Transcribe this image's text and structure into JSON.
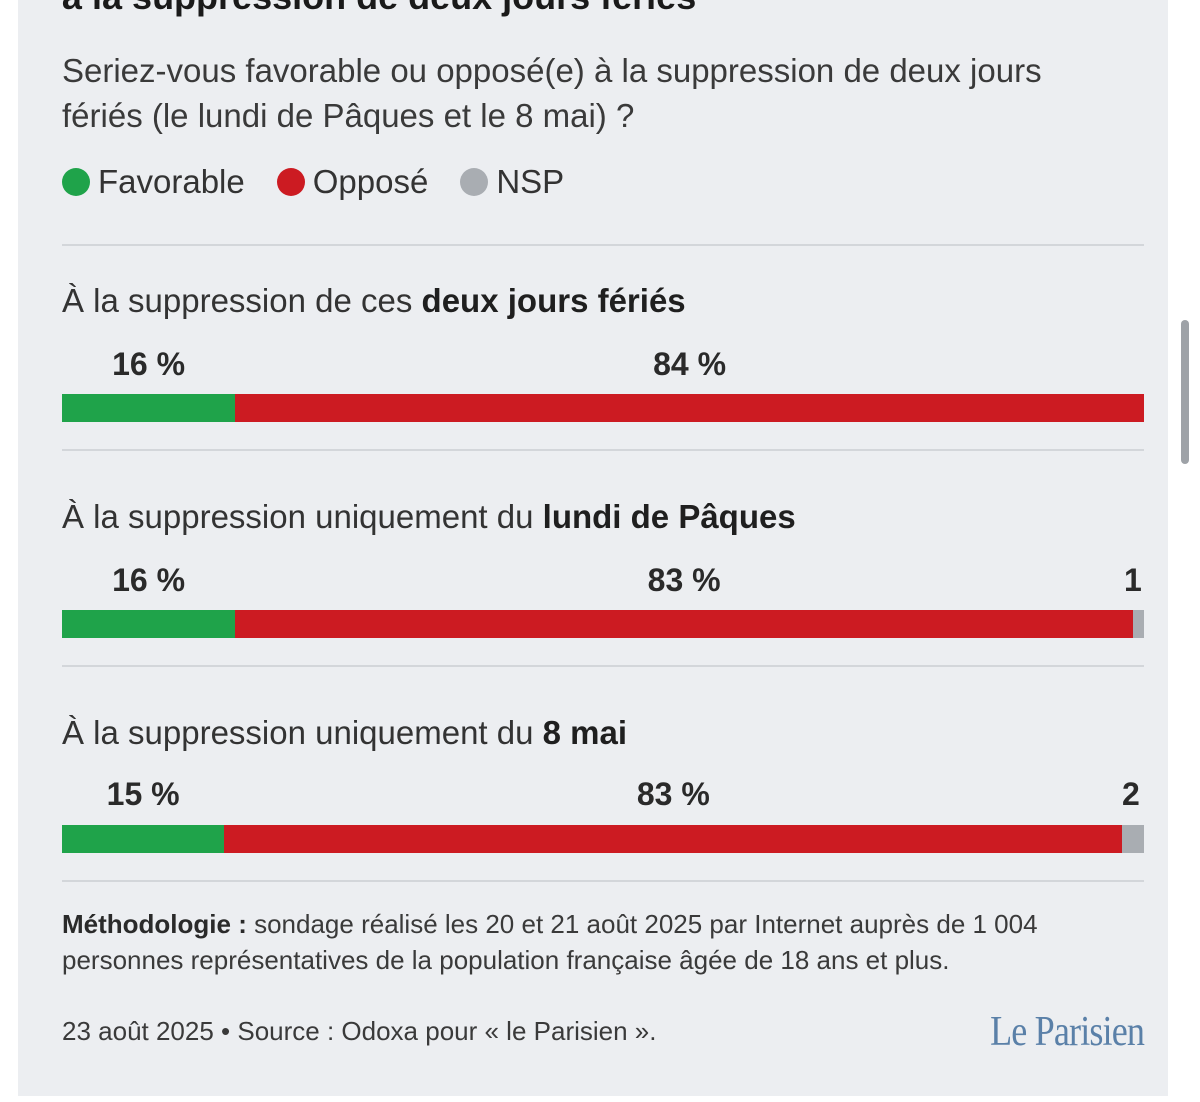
{
  "header": {
    "title_partial": "à la suppression de deux jours fériés",
    "question": "Seriez-vous favorable ou opposé(e) à la suppression de deux jours fériés (le lundi de Pâques et le 8 mai) ?"
  },
  "legend": [
    {
      "label": "Favorable",
      "color": "#1fa34a"
    },
    {
      "label": "Opposé",
      "color": "#cc1b22"
    },
    {
      "label": "NSP",
      "color": "#a9adb2"
    }
  ],
  "chart_data": {
    "type": "bar",
    "orientation": "horizontal-stacked-100",
    "categories": [
      "À la suppression de ces deux jours fériés",
      "À la suppression uniquement du lundi de Pâques",
      "À la suppression uniquement du 8 mai"
    ],
    "series": [
      {
        "name": "Favorable",
        "values": [
          16,
          16,
          15
        ]
      },
      {
        "name": "Opposé",
        "values": [
          84,
          83,
          83
        ]
      },
      {
        "name": "NSP",
        "values": [
          0,
          1,
          2
        ]
      }
    ],
    "rows": [
      {
        "prefix": "À la suppression de ces ",
        "bold": "deux jours fériés",
        "fav": 16,
        "opp": 84,
        "nsp": 0,
        "fav_label": "16 %",
        "opp_label": "84 %",
        "nsp_label": ""
      },
      {
        "prefix": "À la suppression uniquement du ",
        "bold": "lundi de Pâques",
        "fav": 16,
        "opp": 83,
        "nsp": 1,
        "fav_label": "16 %",
        "opp_label": "83 %",
        "nsp_label": "1"
      },
      {
        "prefix": "À la suppression uniquement du ",
        "bold": "8 mai",
        "fav": 15,
        "opp": 83,
        "nsp": 2,
        "fav_label": "15 %",
        "opp_label": "83 %",
        "nsp_label": "2"
      }
    ]
  },
  "footer": {
    "method_bold": "Méthodologie :",
    "method_text": "sondage réalisé les 20 et 21 août 2025 par Internet auprès de 1 004 personnes représentatives de la population française âgée de 18 ans et plus.",
    "source": "23 août 2025 • Source : Odoxa pour « le Parisien ».",
    "logo": "Le Parisien"
  }
}
